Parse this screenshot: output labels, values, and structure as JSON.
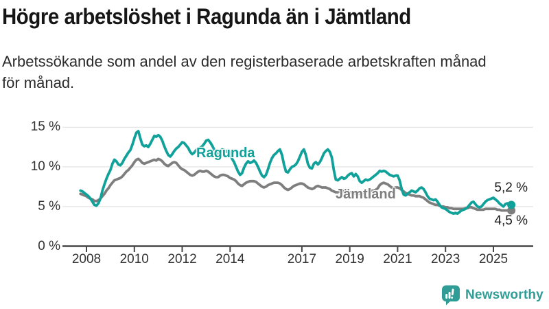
{
  "title": "Högre arbetslöshet i Ragunda än i Jämtland",
  "subtitle": {
    "line1": "Arbetssökande som andel av den registerbaserade arbetskraften månad",
    "line2": "för månad."
  },
  "logo": {
    "text": "Newsworthy",
    "icon": "newsworthy-bubble-barchart-icon",
    "color": "#2F9D95"
  },
  "chart_data": {
    "type": "line",
    "x_unit": "month",
    "x_start": "2007-10",
    "x_end": "2025-10",
    "xlim": [
      2007.0,
      2026.6
    ],
    "ylim": [
      0,
      15.5
    ],
    "grid": true,
    "y_ticks": [
      "15 %",
      "10 %",
      "5 %",
      "0 %"
    ],
    "y_tick_values": [
      15,
      10,
      5,
      0
    ],
    "x_tick_labels": [
      "2008",
      "2010",
      "2012",
      "2014",
      "2017",
      "2019",
      "2021",
      "2023",
      "2025"
    ],
    "x_tick_years": [
      2008,
      2010,
      2012,
      2014,
      2017,
      2019,
      2021,
      2023,
      2025
    ],
    "series": [
      {
        "name": "Ragunda",
        "color": "#10A29A",
        "end_label": "5,2 %",
        "end_value": 5.2,
        "values": [
          7.0,
          6.9,
          6.7,
          6.5,
          6.3,
          6.0,
          5.6,
          5.2,
          5.1,
          5.4,
          6.0,
          7.0,
          7.8,
          8.5,
          9.1,
          9.6,
          10.4,
          10.9,
          10.7,
          10.3,
          10.2,
          10.5,
          11.0,
          11.4,
          11.8,
          12.1,
          12.8,
          13.6,
          14.3,
          14.5,
          13.6,
          12.8,
          12.6,
          12.7,
          12.5,
          12.9,
          13.4,
          13.9,
          13.8,
          14.0,
          13.8,
          13.3,
          12.6,
          12.0,
          11.5,
          11.3,
          11.6,
          12.0,
          12.3,
          12.5,
          12.8,
          13.1,
          13.0,
          12.7,
          12.4,
          11.9,
          11.6,
          11.8,
          12.1,
          12.3,
          12.4,
          12.6,
          12.9,
          13.3,
          13.4,
          13.1,
          12.7,
          12.2,
          11.8,
          11.7,
          12.0,
          12.2,
          12.1,
          11.9,
          12.1,
          11.8,
          11.0,
          10.6,
          10.0,
          9.4,
          9.0,
          9.2,
          9.9,
          10.4,
          10.7,
          10.5,
          10.6,
          10.8,
          10.5,
          10.0,
          9.4,
          8.9,
          8.7,
          9.0,
          9.7,
          10.5,
          11.1,
          11.5,
          11.7,
          12.0,
          12.2,
          11.5,
          10.3,
          9.4,
          9.3,
          9.7,
          10.0,
          10.1,
          10.3,
          10.7,
          11.3,
          11.9,
          12.2,
          11.5,
          10.4,
          9.9,
          9.8,
          10.4,
          10.6,
          10.3,
          10.6,
          11.1,
          11.7,
          12.0,
          12.2,
          11.9,
          11.2,
          9.6,
          8.4,
          8.3,
          8.5,
          8.7,
          8.5,
          8.6,
          8.9,
          9.1,
          9.2,
          8.8,
          9.1,
          8.8,
          8.2,
          8.0,
          8.2,
          8.4,
          8.3,
          8.4,
          8.6,
          8.8,
          9.0,
          9.2,
          9.5,
          9.4,
          9.5,
          9.4,
          9.2,
          9.0,
          8.9,
          8.8,
          8.9,
          8.9,
          8.3,
          7.2,
          6.5,
          6.4,
          6.6,
          6.8,
          7.0,
          6.9,
          6.8,
          7.0,
          7.3,
          7.4,
          7.2,
          6.8,
          6.3,
          6.0,
          5.9,
          5.8,
          5.9,
          5.6,
          5.2,
          4.9,
          4.8,
          4.7,
          4.5,
          4.3,
          4.2,
          4.1,
          4.2,
          4.1,
          4.3,
          4.5,
          4.6,
          4.7,
          4.9,
          5.2,
          5.5,
          5.6,
          5.3,
          5.0,
          4.9,
          5.0,
          5.3,
          5.6,
          5.8,
          5.9,
          6.0,
          6.1,
          5.9,
          5.7,
          5.4,
          5.2,
          5.0,
          5.3,
          5.4,
          5.1,
          5.2
        ]
      },
      {
        "name": "Jämtland",
        "color": "#7E7E7E",
        "end_label": "4,5 %",
        "end_value": 4.5,
        "values": [
          6.6,
          6.5,
          6.4,
          6.3,
          6.1,
          6.0,
          5.9,
          5.7,
          5.7,
          5.8,
          6.0,
          6.3,
          6.6,
          7.0,
          7.3,
          7.7,
          8.0,
          8.3,
          8.4,
          8.5,
          8.6,
          8.8,
          9.1,
          9.4,
          9.6,
          9.9,
          10.2,
          10.6,
          10.9,
          11.0,
          10.8,
          10.5,
          10.4,
          10.5,
          10.6,
          10.7,
          10.8,
          10.9,
          10.8,
          11.0,
          10.9,
          10.7,
          10.4,
          10.2,
          10.1,
          10.3,
          10.5,
          10.6,
          10.5,
          10.2,
          9.9,
          9.7,
          9.6,
          9.4,
          9.2,
          9.0,
          8.9,
          9.0,
          9.2,
          9.4,
          9.5,
          9.4,
          9.4,
          9.5,
          9.4,
          9.2,
          9.0,
          8.8,
          8.7,
          8.7,
          8.9,
          9.0,
          9.0,
          8.9,
          8.8,
          8.6,
          8.5,
          8.4,
          8.2,
          7.9,
          7.7,
          7.6,
          7.8,
          8.0,
          8.1,
          8.2,
          8.2,
          8.2,
          8.1,
          7.9,
          7.7,
          7.5,
          7.4,
          7.5,
          7.7,
          7.8,
          7.9,
          8.0,
          8.0,
          8.0,
          7.9,
          7.7,
          7.4,
          7.2,
          7.1,
          7.2,
          7.4,
          7.6,
          7.7,
          7.8,
          7.9,
          7.9,
          7.8,
          7.6,
          7.4,
          7.3,
          7.2,
          7.3,
          7.5,
          7.6,
          7.5,
          7.4,
          7.4,
          7.4,
          7.3,
          7.2,
          7.0,
          6.9,
          6.8,
          6.8,
          6.9,
          7.0,
          6.9,
          6.8,
          6.8,
          6.8,
          6.8,
          6.7,
          6.6,
          6.6,
          6.6,
          6.7,
          6.8,
          6.9,
          6.9,
          6.9,
          7.0,
          7.0,
          7.1,
          7.3,
          7.7,
          7.9,
          8.0,
          7.9,
          7.8,
          7.6,
          7.4,
          7.3,
          7.4,
          7.4,
          7.3,
          7.1,
          6.9,
          6.7,
          6.6,
          6.5,
          6.4,
          6.4,
          6.3,
          6.3,
          6.3,
          6.2,
          6.1,
          5.9,
          5.7,
          5.5,
          5.4,
          5.3,
          5.2,
          5.2,
          5.1,
          5.0,
          5.0,
          4.9,
          4.9,
          4.8,
          4.8,
          4.7,
          4.7,
          4.7,
          4.7,
          4.7,
          4.7,
          4.8,
          4.8,
          4.9,
          4.9,
          4.8,
          4.7,
          4.6,
          4.6,
          4.6,
          4.6,
          4.7,
          4.7,
          4.7,
          4.7,
          4.7,
          4.7,
          4.6,
          4.6,
          4.5,
          4.5,
          4.5,
          4.5,
          4.5,
          4.5
        ]
      }
    ]
  }
}
